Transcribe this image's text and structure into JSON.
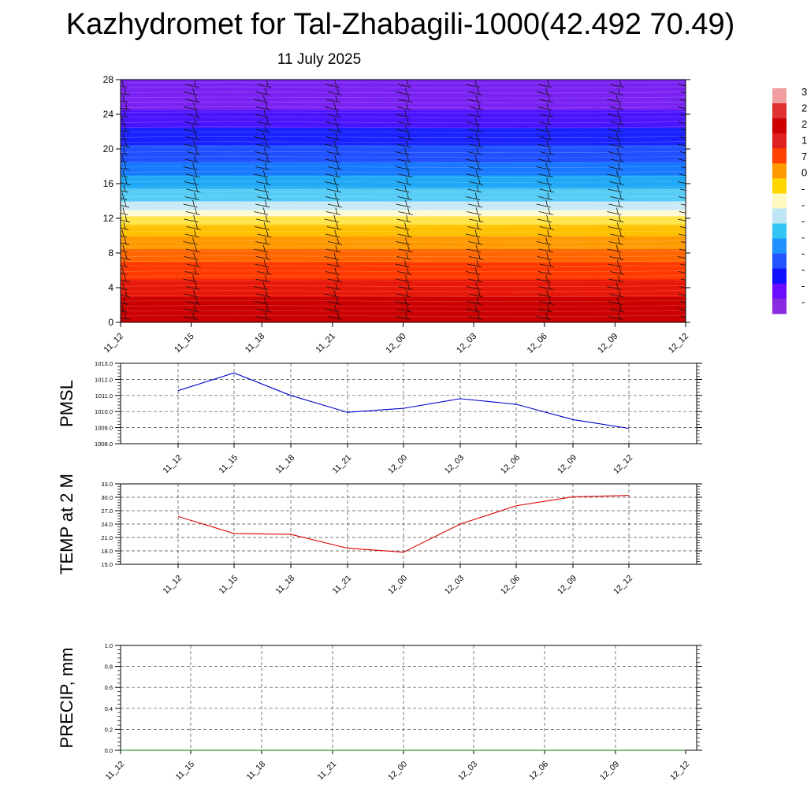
{
  "header": {
    "title": "Kazhydromet for Tal-Zhabagili-1000(42.492 70.49)",
    "subtitle": "11 July 2025"
  },
  "colorbar": {
    "labels": [
      "3",
      "2",
      "2",
      "1",
      "7",
      "0",
      "-",
      "-",
      "-",
      "-",
      "-",
      "-",
      "-",
      "-"
    ],
    "colors": [
      "#f0a0a0",
      "#e03030",
      "#cc0000",
      "#e02020",
      "#ff4000",
      "#ff9900",
      "#ffd700",
      "#fff8c0",
      "#bfe6f5",
      "#33c6f5",
      "#1e90ff",
      "#2255ff",
      "#1010ff",
      "#6a0dff",
      "#8a2be2"
    ]
  },
  "chart_data": [
    {
      "type": "heatmap",
      "title": "",
      "x_labels": [
        "11_12",
        "11_15",
        "11_18",
        "11_21",
        "12_00",
        "12_03",
        "12_06",
        "12_09",
        "12_12"
      ],
      "y_ticks": [
        0,
        4,
        8,
        12,
        16,
        20,
        24,
        28
      ],
      "ylim": [
        0,
        28
      ],
      "color_bands": [
        {
          "y0": 0,
          "y1": 3,
          "color": "#cc0000"
        },
        {
          "y0": 3,
          "y1": 5,
          "color": "#e81808"
        },
        {
          "y0": 5,
          "y1": 7,
          "color": "#ff3a00"
        },
        {
          "y0": 7,
          "y1": 8.5,
          "color": "#ff6600"
        },
        {
          "y0": 8.5,
          "y1": 10,
          "color": "#ff9a00"
        },
        {
          "y0": 10,
          "y1": 11.3,
          "color": "#ffc000"
        },
        {
          "y0": 11.3,
          "y1": 12.3,
          "color": "#ffe54a"
        },
        {
          "y0": 12.3,
          "y1": 13,
          "color": "#fffbd8"
        },
        {
          "y0": 13,
          "y1": 14,
          "color": "#c8eaf7"
        },
        {
          "y0": 14,
          "y1": 15.5,
          "color": "#55ccf5"
        },
        {
          "y0": 15.5,
          "y1": 17,
          "color": "#1ea8f5"
        },
        {
          "y0": 17,
          "y1": 18.5,
          "color": "#1878ff"
        },
        {
          "y0": 18.5,
          "y1": 20.5,
          "color": "#2050ff"
        },
        {
          "y0": 20.5,
          "y1": 22.5,
          "color": "#1a22ff"
        },
        {
          "y0": 22.5,
          "y1": 24.5,
          "color": "#4a14ff"
        },
        {
          "y0": 24.5,
          "y1": 28,
          "color": "#7a22f2"
        }
      ],
      "wind_barbs": "present"
    },
    {
      "type": "line",
      "ylabel": "PMSL",
      "x_labels": [
        "11_12",
        "11_15",
        "11_18",
        "11_21",
        "12_00",
        "12_03",
        "12_06",
        "12_09",
        "12_12"
      ],
      "y_ticks": [
        "1008.0",
        "1009.0",
        "1010.0",
        "1011.0",
        "1012.0",
        "1013.0"
      ],
      "ylim": [
        1008,
        1013
      ],
      "grid": true,
      "series": [
        {
          "values": [
            1011.3,
            1012.4,
            1011.0,
            1009.95,
            1010.2,
            1010.8,
            1010.45,
            1009.5,
            1008.95
          ],
          "color": "#0000cc"
        }
      ]
    },
    {
      "type": "line",
      "ylabel": "TEMP at 2 M",
      "x_labels": [
        "11_12",
        "11_15",
        "11_18",
        "11_21",
        "12_00",
        "12_03",
        "12_06",
        "12_09",
        "12_12"
      ],
      "y_ticks": [
        "15.0",
        "18.0",
        "21.0",
        "24.0",
        "27.0",
        "30.0",
        "33.0"
      ],
      "ylim": [
        15,
        33
      ],
      "grid": true,
      "series": [
        {
          "values": [
            25.7,
            21.9,
            21.7,
            18.6,
            17.7,
            24.0,
            28.1,
            30.1,
            30.4
          ],
          "color": "#dd0000"
        }
      ]
    },
    {
      "type": "line",
      "ylabel": "PRECIP, mm",
      "x_labels": [
        "11_12",
        "11_15",
        "11_18",
        "11_21",
        "12_00",
        "12_03",
        "12_06",
        "12_09",
        "12_12"
      ],
      "y_ticks": [
        "0.0",
        "0.2",
        "0.4",
        "0.6",
        "0.8",
        "1.0"
      ],
      "ylim": [
        0,
        1
      ],
      "grid": true,
      "series": [
        {
          "values": [
            0,
            0,
            0,
            0,
            0,
            0,
            0,
            0,
            0
          ],
          "color": "#008000"
        }
      ]
    }
  ]
}
